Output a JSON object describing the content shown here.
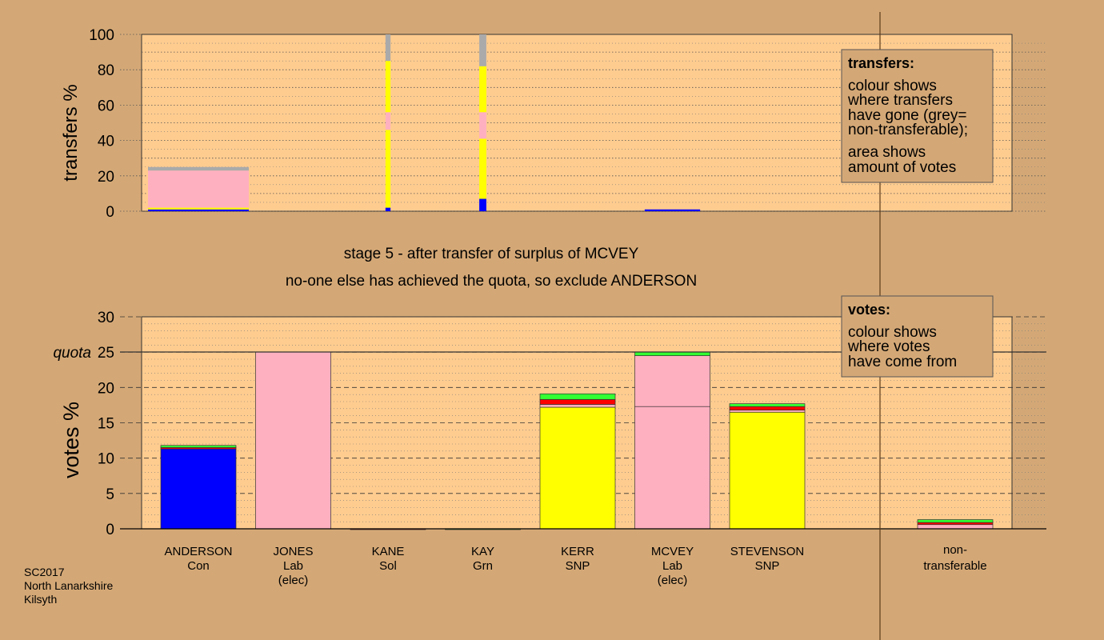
{
  "colors": {
    "page_bg": "#d4a876",
    "plot_bg": "#ffcc8f",
    "legend_bg": "#d4a876",
    "Con": "#0000ff",
    "Lab": "#ffb0c0",
    "SNP": "#ffff00",
    "Grn": "#33ff33",
    "Sol": "#ff0000",
    "nontransferable": "#aaaaaa"
  },
  "footer": {
    "line1": "SC2017",
    "line2": "North Lanarkshire",
    "line3": "Kilsyth"
  },
  "stage_text": {
    "line1": "stage 5 - after transfer of surplus of MCVEY",
    "line2": "no-one else has achieved the quota, so exclude ANDERSON"
  },
  "legend_transfers": {
    "title": "transfers:",
    "lines": [
      "colour shows",
      "where transfers",
      "have gone (grey=",
      "non-transferable);",
      "area shows",
      "amount of votes"
    ]
  },
  "legend_votes": {
    "title": "votes:",
    "lines": [
      "colour shows",
      "where votes",
      "have come from"
    ]
  },
  "chart_data": [
    {
      "type": "bar",
      "stacked": true,
      "ylabel": "transfers %",
      "ylim": [
        0,
        100
      ],
      "yticks": [
        0,
        20,
        40,
        60,
        80,
        100
      ],
      "grid": true,
      "legend_position": "top-right",
      "categories": [
        "ANDERSON Con",
        "JONES Lab (elec)",
        "KANE Sol",
        "KAY Grn",
        "KERR SNP",
        "MCVEY Lab (elec)",
        "STEVENSON SNP"
      ],
      "bars": [
        {
          "category": "ANDERSON Con",
          "width_share": 1.0,
          "segments": [
            {
              "party": "Con",
              "value": 1
            },
            {
              "party": "SNP",
              "value": 1
            },
            {
              "party": "Lab",
              "value": 21
            },
            {
              "party": "nontransferable",
              "value": 2
            }
          ]
        },
        {
          "category": "KANE Sol",
          "width_share": 0.05,
          "segments": [
            {
              "party": "Con",
              "value": 2
            },
            {
              "party": "SNP",
              "value": 44
            },
            {
              "party": "Lab",
              "value": 10
            },
            {
              "party": "SNP",
              "value": 29
            },
            {
              "party": "nontransferable",
              "value": 15
            }
          ]
        },
        {
          "category": "KAY Grn",
          "width_share": 0.07,
          "segments": [
            {
              "party": "Con",
              "value": 7
            },
            {
              "party": "SNP",
              "value": 34
            },
            {
              "party": "Lab",
              "value": 15
            },
            {
              "party": "SNP",
              "value": 26
            },
            {
              "party": "nontransferable",
              "value": 18
            }
          ]
        },
        {
          "category": "MCVEY Lab (elec)",
          "width_share": 0.55,
          "segments": [
            {
              "party": "Con",
              "value": 1
            }
          ]
        }
      ]
    },
    {
      "type": "bar",
      "stacked": true,
      "ylabel": "votes %",
      "ylim": [
        0,
        30
      ],
      "yticks": [
        0,
        5,
        10,
        15,
        20,
        25,
        30
      ],
      "quota": {
        "label": "quota",
        "value": 25
      },
      "grid": true,
      "legend_position": "top-right",
      "candidates": [
        {
          "name": "ANDERSON",
          "party": "Con",
          "note": "",
          "segments": [
            {
              "party": "Con",
              "value": 11.3
            },
            {
              "party": "Sol",
              "value": 0.2
            },
            {
              "party": "Grn",
              "value": 0.3
            }
          ]
        },
        {
          "name": "JONES",
          "party": "Lab",
          "note": "(elec)",
          "segments": [
            {
              "party": "Lab",
              "value": 25.0
            }
          ]
        },
        {
          "name": "KANE",
          "party": "Sol",
          "note": "",
          "segments": [
            {
              "party": "Sol",
              "value": 0.0
            }
          ]
        },
        {
          "name": "KAY",
          "party": "Grn",
          "note": "",
          "segments": [
            {
              "party": "Grn",
              "value": 0.0
            }
          ]
        },
        {
          "name": "KERR",
          "party": "SNP",
          "note": "",
          "segments": [
            {
              "party": "SNP",
              "value": 17.2
            },
            {
              "party": "Lab",
              "value": 0.4
            },
            {
              "party": "Sol",
              "value": 0.7
            },
            {
              "party": "Grn",
              "value": 0.8
            }
          ]
        },
        {
          "name": "MCVEY",
          "party": "Lab",
          "note": "(elec)",
          "segments": [
            {
              "party": "Lab",
              "value": 17.3
            },
            {
              "party": "Lab",
              "value": 7.2
            },
            {
              "party": "Grn",
              "value": 0.5
            }
          ]
        },
        {
          "name": "STEVENSON",
          "party": "SNP",
          "note": "",
          "segments": [
            {
              "party": "SNP",
              "value": 16.5
            },
            {
              "party": "Lab",
              "value": 0.3
            },
            {
              "party": "Sol",
              "value": 0.5
            },
            {
              "party": "Grn",
              "value": 0.4
            }
          ]
        }
      ],
      "nontransferable": {
        "label_line1": "non-",
        "label_line2": "transferable",
        "segments": [
          {
            "party": "Lab",
            "value": 0.6
          },
          {
            "party": "Sol",
            "value": 0.3
          },
          {
            "party": "Grn",
            "value": 0.4
          }
        ]
      }
    }
  ]
}
